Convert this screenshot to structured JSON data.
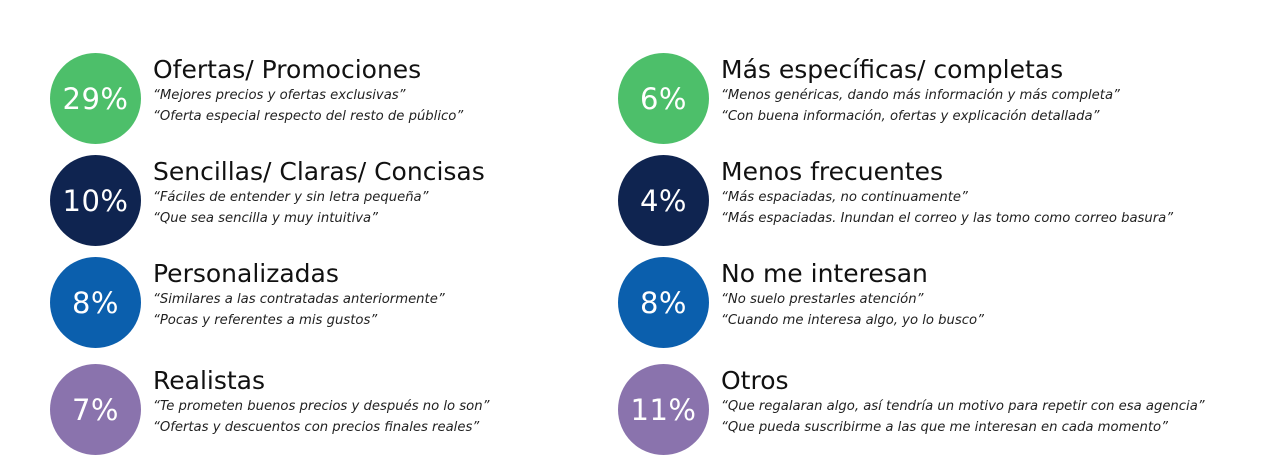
{
  "colors": {
    "green": "#4dbf6a",
    "navy": "#0f2450",
    "blue": "#0b5fad",
    "purple": "#8a73ad"
  },
  "left": [
    {
      "percent": "29%",
      "color": "#4dbf6a",
      "title": "Ofertas/ Promociones",
      "quotes": [
        "“Mejores precios y ofertas exclusivas”",
        "“Oferta especial respecto del resto de público”"
      ]
    },
    {
      "percent": "10%",
      "color": "#0f2450",
      "title": "Sencillas/ Claras/ Concisas",
      "quotes": [
        "“Fáciles de entender y sin letra pequeña”",
        "“Que sea sencilla y muy intuitiva”"
      ]
    },
    {
      "percent": "8%",
      "color": "#0b5fad",
      "title": "Personalizadas",
      "quotes": [
        "“Similares a las contratadas anteriormente”",
        "“Pocas y referentes a mis gustos”"
      ]
    },
    {
      "percent": "7%",
      "color": "#8a73ad",
      "title": "Realistas",
      "quotes": [
        "“Te prometen buenos precios y después no lo son”",
        "“Ofertas y descuentos con precios finales reales”"
      ]
    }
  ],
  "right": [
    {
      "percent": "6%",
      "color": "#4dbf6a",
      "title": "Más específicas/ completas",
      "quotes": [
        "“Menos genéricas, dando más información y más completa”",
        "“Con buena información, ofertas y explicación detallada”"
      ]
    },
    {
      "percent": "4%",
      "color": "#0f2450",
      "title": "Menos frecuentes",
      "quotes": [
        "“Más espaciadas, no continuamente”",
        "“Más espaciadas. Inundan el correo y las tomo como correo basura”"
      ]
    },
    {
      "percent": "8%",
      "color": "#0b5fad",
      "title": "No me interesan",
      "quotes": [
        "“No suelo prestarles atención”",
        "“Cuando me interesa algo, yo lo busco”"
      ]
    },
    {
      "percent": "11%",
      "color": "#8a73ad",
      "title": "Otros",
      "quotes": [
        "“Que regalaran algo, así tendría un motivo para repetir con esa agencia”",
        "“Que pueda suscribirme a las que me interesan en cada momento”"
      ]
    }
  ]
}
